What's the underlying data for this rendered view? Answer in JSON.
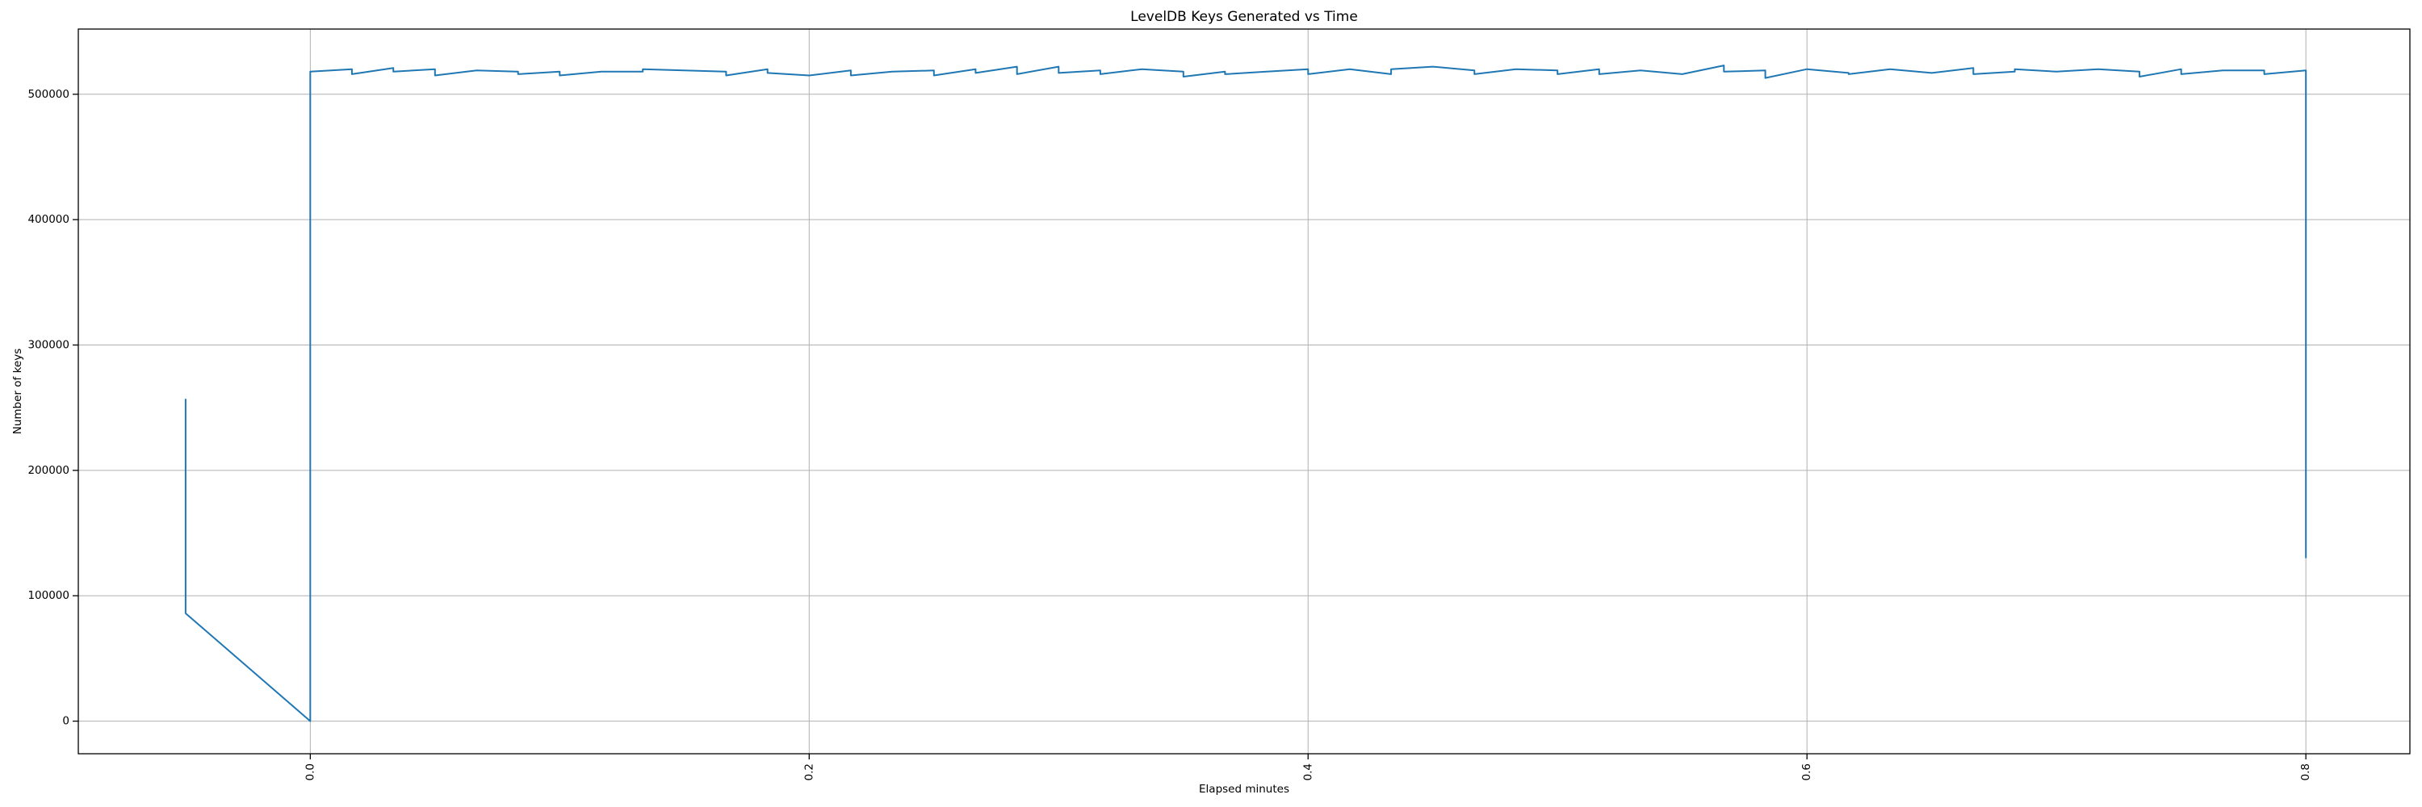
{
  "chart_data": {
    "type": "line",
    "title": "LevelDB Keys Generated vs Time",
    "xlabel": "Elapsed minutes",
    "ylabel": "Number of keys",
    "xlim": [
      -0.093,
      0.8417
    ],
    "ylim": [
      -26000,
      552000
    ],
    "xticks": [
      0.0,
      0.2,
      0.4,
      0.6,
      0.8
    ],
    "xtick_labels": [
      "0.0",
      "0.2",
      "0.4",
      "0.6",
      "0.8"
    ],
    "xtick_rotation": 90,
    "yticks": [
      0,
      100000,
      200000,
      300000,
      400000,
      500000
    ],
    "ytick_labels": [
      "0",
      "100000",
      "200000",
      "300000",
      "400000",
      "500000"
    ],
    "grid": true,
    "color": "#1f77b4",
    "series": [
      {
        "x": [
          -0.05,
          -0.05,
          0.0,
          0.0,
          0.0167,
          0.0167,
          0.0333,
          0.0333,
          0.05,
          0.05,
          0.0667,
          0.0833,
          0.0833,
          0.1,
          0.1,
          0.1167,
          0.1333,
          0.1333,
          0.15,
          0.1667,
          0.1667,
          0.1833,
          0.1833,
          0.2,
          0.2167,
          0.2167,
          0.2333,
          0.25,
          0.25,
          0.2667,
          0.2667,
          0.2833,
          0.2833,
          0.3,
          0.3,
          0.3167,
          0.3167,
          0.3333,
          0.35,
          0.35,
          0.3667,
          0.3667,
          0.3833,
          0.4,
          0.4,
          0.4167,
          0.4333,
          0.4333,
          0.45,
          0.4667,
          0.4667,
          0.4833,
          0.5,
          0.5,
          0.5167,
          0.5167,
          0.5333,
          0.55,
          0.5667,
          0.5667,
          0.5833,
          0.5833,
          0.6,
          0.6167,
          0.6167,
          0.6333,
          0.65,
          0.6667,
          0.6667,
          0.6833,
          0.6833,
          0.7,
          0.7167,
          0.7333,
          0.7333,
          0.75,
          0.75,
          0.7667,
          0.7833,
          0.7833,
          0.8,
          0.8
        ],
        "y": [
          257000,
          86000,
          0,
          518000,
          520000,
          516000,
          521000,
          518000,
          520000,
          515000,
          519000,
          518000,
          516000,
          518000,
          515000,
          518000,
          518000,
          520000,
          519000,
          518000,
          515000,
          520000,
          517000,
          515000,
          519000,
          515000,
          518000,
          519000,
          515000,
          520000,
          517000,
          522000,
          516000,
          522000,
          517000,
          519000,
          516000,
          520000,
          518000,
          514000,
          518000,
          516000,
          518000,
          520000,
          516000,
          520000,
          516000,
          520000,
          522000,
          519000,
          516000,
          520000,
          519000,
          516000,
          520000,
          516000,
          519000,
          516000,
          523000,
          518000,
          519000,
          513000,
          520000,
          517000,
          516000,
          520000,
          517000,
          521000,
          516000,
          518000,
          520000,
          518000,
          520000,
          518000,
          514000,
          520000,
          516000,
          519000,
          519000,
          516000,
          519000,
          130000
        ]
      }
    ]
  }
}
